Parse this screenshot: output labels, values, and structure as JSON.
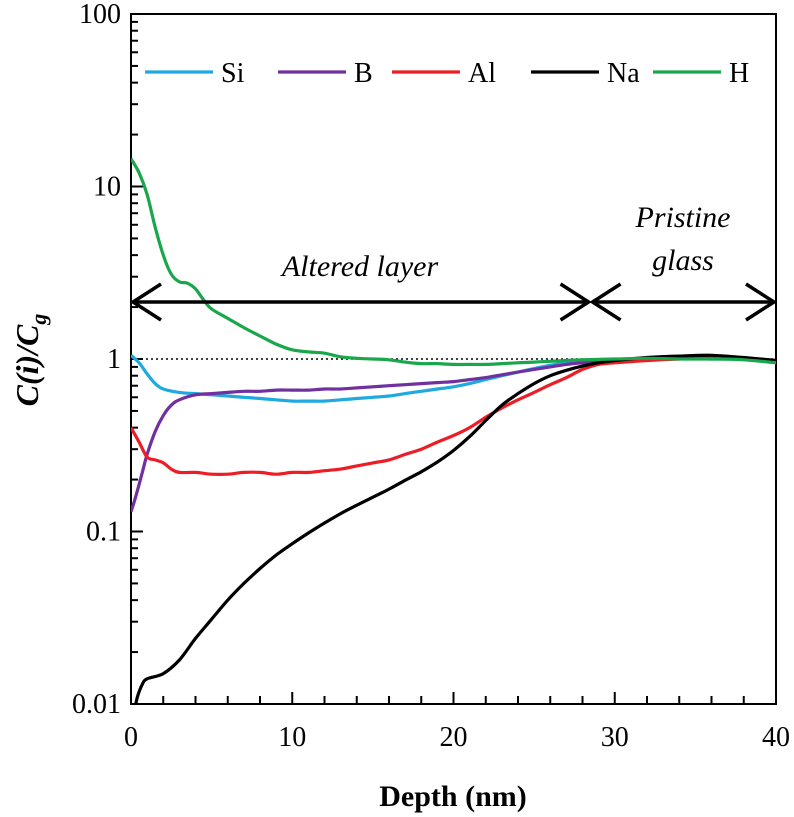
{
  "chart_data": {
    "type": "line",
    "title": "",
    "xlabel": "Depth (nm)",
    "ylabel": {
      "main": "C(i)/C",
      "sub": "g"
    },
    "xlim": [
      0,
      40
    ],
    "ylim": [
      0.01,
      100
    ],
    "yscale": "log",
    "x_ticks": [
      0,
      10,
      20,
      30,
      40
    ],
    "x_tick_labels": [
      "0",
      "10",
      "20",
      "30",
      "40"
    ],
    "y_ticks": [
      0.01,
      0.1,
      1,
      10,
      100
    ],
    "y_tick_labels": [
      "0.01",
      "0.1",
      "1",
      "10",
      "100"
    ],
    "reference_line": {
      "y": 1,
      "style": "dotted"
    },
    "legend_position": "top",
    "series": [
      {
        "name": "Si",
        "color": "#1fa9e1",
        "points": [
          [
            0,
            1.05
          ],
          [
            0.5,
            0.95
          ],
          [
            1,
            0.82
          ],
          [
            1.5,
            0.72
          ],
          [
            2,
            0.67
          ],
          [
            3,
            0.64
          ],
          [
            4,
            0.63
          ],
          [
            5,
            0.62
          ],
          [
            6,
            0.61
          ],
          [
            7,
            0.6
          ],
          [
            8,
            0.59
          ],
          [
            9,
            0.58
          ],
          [
            10,
            0.57
          ],
          [
            11,
            0.57
          ],
          [
            12,
            0.57
          ],
          [
            13,
            0.58
          ],
          [
            14,
            0.59
          ],
          [
            15,
            0.6
          ],
          [
            16,
            0.61
          ],
          [
            17,
            0.63
          ],
          [
            18,
            0.65
          ],
          [
            19,
            0.67
          ],
          [
            20,
            0.69
          ],
          [
            21,
            0.72
          ],
          [
            22,
            0.76
          ],
          [
            23,
            0.8
          ],
          [
            24,
            0.84
          ],
          [
            25,
            0.88
          ],
          [
            26,
            0.92
          ],
          [
            27,
            0.95
          ],
          [
            28,
            0.96
          ],
          [
            29,
            0.97
          ],
          [
            30,
            0.98
          ],
          [
            32,
            1.0
          ],
          [
            34,
            1.01
          ],
          [
            36,
            1.0
          ],
          [
            38,
            1.0
          ],
          [
            40,
            0.98
          ]
        ]
      },
      {
        "name": "B",
        "color": "#7030a0",
        "points": [
          [
            0,
            0.13
          ],
          [
            0.3,
            0.16
          ],
          [
            0.7,
            0.22
          ],
          [
            1,
            0.28
          ],
          [
            1.5,
            0.38
          ],
          [
            2,
            0.47
          ],
          [
            2.5,
            0.54
          ],
          [
            3,
            0.58
          ],
          [
            4,
            0.62
          ],
          [
            5,
            0.63
          ],
          [
            6,
            0.64
          ],
          [
            7,
            0.65
          ],
          [
            8,
            0.65
          ],
          [
            9,
            0.66
          ],
          [
            10,
            0.66
          ],
          [
            11,
            0.66
          ],
          [
            12,
            0.67
          ],
          [
            13,
            0.67
          ],
          [
            14,
            0.68
          ],
          [
            15,
            0.69
          ],
          [
            16,
            0.7
          ],
          [
            17,
            0.71
          ],
          [
            18,
            0.72
          ],
          [
            19,
            0.73
          ],
          [
            20,
            0.74
          ],
          [
            21,
            0.76
          ],
          [
            22,
            0.78
          ],
          [
            23,
            0.81
          ],
          [
            24,
            0.84
          ],
          [
            25,
            0.87
          ],
          [
            26,
            0.9
          ],
          [
            27,
            0.93
          ],
          [
            28,
            0.95
          ],
          [
            30,
            0.97
          ],
          [
            32,
            1.0
          ],
          [
            34,
            1.02
          ],
          [
            36,
            1.02
          ],
          [
            38,
            1.01
          ],
          [
            40,
            0.98
          ]
        ]
      },
      {
        "name": "Al",
        "color": "#ee1c25",
        "points": [
          [
            0,
            0.4
          ],
          [
            0.5,
            0.33
          ],
          [
            1,
            0.27
          ],
          [
            1.5,
            0.26
          ],
          [
            2,
            0.25
          ],
          [
            2.5,
            0.23
          ],
          [
            3,
            0.22
          ],
          [
            4,
            0.22
          ],
          [
            5,
            0.215
          ],
          [
            6,
            0.215
          ],
          [
            7,
            0.22
          ],
          [
            8,
            0.22
          ],
          [
            9,
            0.215
          ],
          [
            10,
            0.22
          ],
          [
            11,
            0.22
          ],
          [
            12,
            0.225
          ],
          [
            13,
            0.23
          ],
          [
            14,
            0.24
          ],
          [
            15,
            0.25
          ],
          [
            16,
            0.26
          ],
          [
            17,
            0.28
          ],
          [
            18,
            0.3
          ],
          [
            19,
            0.33
          ],
          [
            20,
            0.36
          ],
          [
            21,
            0.4
          ],
          [
            22,
            0.46
          ],
          [
            23,
            0.52
          ],
          [
            24,
            0.58
          ],
          [
            25,
            0.64
          ],
          [
            26,
            0.71
          ],
          [
            27,
            0.78
          ],
          [
            28,
            0.87
          ],
          [
            29,
            0.93
          ],
          [
            30,
            0.95
          ],
          [
            32,
            0.98
          ],
          [
            34,
            1.0
          ],
          [
            36,
            1.02
          ],
          [
            38,
            1.01
          ],
          [
            40,
            0.98
          ]
        ]
      },
      {
        "name": "Na",
        "color": "#000000",
        "points": [
          [
            0.2,
            0.009
          ],
          [
            0.4,
            0.011
          ],
          [
            0.7,
            0.013
          ],
          [
            1,
            0.014
          ],
          [
            2,
            0.015
          ],
          [
            3,
            0.018
          ],
          [
            4,
            0.024
          ],
          [
            5,
            0.031
          ],
          [
            6,
            0.04
          ],
          [
            7,
            0.05
          ],
          [
            8,
            0.061
          ],
          [
            9,
            0.073
          ],
          [
            10,
            0.085
          ],
          [
            11,
            0.098
          ],
          [
            12,
            0.112
          ],
          [
            13,
            0.127
          ],
          [
            14,
            0.142
          ],
          [
            15,
            0.158
          ],
          [
            16,
            0.176
          ],
          [
            17,
            0.198
          ],
          [
            18,
            0.222
          ],
          [
            19,
            0.253
          ],
          [
            20,
            0.295
          ],
          [
            21,
            0.355
          ],
          [
            22,
            0.44
          ],
          [
            23,
            0.54
          ],
          [
            24,
            0.63
          ],
          [
            25,
            0.72
          ],
          [
            26,
            0.8
          ],
          [
            27,
            0.86
          ],
          [
            28,
            0.91
          ],
          [
            29,
            0.95
          ],
          [
            30,
            0.98
          ],
          [
            32,
            1.02
          ],
          [
            34,
            1.04
          ],
          [
            36,
            1.05
          ],
          [
            38,
            1.02
          ],
          [
            40,
            0.98
          ]
        ]
      },
      {
        "name": "H",
        "color": "#1aa64b",
        "points": [
          [
            0,
            14.5
          ],
          [
            0.5,
            12.0
          ],
          [
            1,
            9.0
          ],
          [
            1.5,
            5.8
          ],
          [
            2,
            4.0
          ],
          [
            2.5,
            3.1
          ],
          [
            3,
            2.8
          ],
          [
            3.5,
            2.75
          ],
          [
            4,
            2.55
          ],
          [
            4.5,
            2.2
          ],
          [
            5,
            1.95
          ],
          [
            6,
            1.72
          ],
          [
            7,
            1.52
          ],
          [
            8,
            1.36
          ],
          [
            9,
            1.22
          ],
          [
            10,
            1.13
          ],
          [
            11,
            1.1
          ],
          [
            12,
            1.08
          ],
          [
            13,
            1.03
          ],
          [
            14,
            1.01
          ],
          [
            15,
            1.0
          ],
          [
            16,
            0.99
          ],
          [
            17,
            0.96
          ],
          [
            18,
            0.94
          ],
          [
            19,
            0.94
          ],
          [
            20,
            0.93
          ],
          [
            21,
            0.93
          ],
          [
            22,
            0.93
          ],
          [
            23,
            0.94
          ],
          [
            24,
            0.95
          ],
          [
            25,
            0.96
          ],
          [
            26,
            0.97
          ],
          [
            27,
            0.98
          ],
          [
            28,
            0.99
          ],
          [
            30,
            1.0
          ],
          [
            32,
            1.01
          ],
          [
            34,
            1.0
          ],
          [
            36,
            1.0
          ],
          [
            38,
            0.99
          ],
          [
            40,
            0.95
          ]
        ]
      }
    ],
    "annotations": {
      "altered": {
        "text": "Altered layer",
        "x_range": [
          0,
          28.5
        ]
      },
      "pristine": {
        "line1": "Pristine",
        "line2": "glass",
        "x_range": [
          28.5,
          40
        ]
      }
    }
  }
}
